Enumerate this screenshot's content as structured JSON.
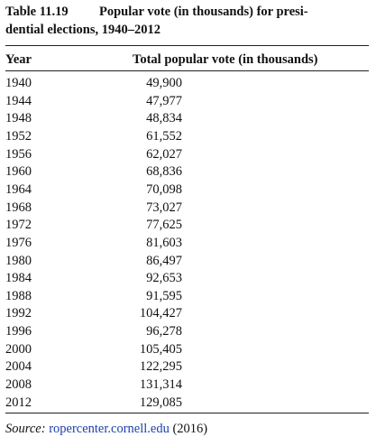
{
  "title": {
    "label": "Table 11.19",
    "lines": [
      "Popular vote (in thousands) for presi-",
      "dential elections, 1940–2012"
    ]
  },
  "table": {
    "columns": [
      "Year",
      "Total popular vote (in thousands)"
    ],
    "rows": [
      [
        "1940",
        "49,900"
      ],
      [
        "1944",
        "47,977"
      ],
      [
        "1948",
        "48,834"
      ],
      [
        "1952",
        "61,552"
      ],
      [
        "1956",
        "62,027"
      ],
      [
        "1960",
        "68,836"
      ],
      [
        "1964",
        "70,098"
      ],
      [
        "1968",
        "73,027"
      ],
      [
        "1972",
        "77,625"
      ],
      [
        "1976",
        "81,603"
      ],
      [
        "1980",
        "86,497"
      ],
      [
        "1984",
        "92,653"
      ],
      [
        "1988",
        "91,595"
      ],
      [
        "1992",
        "104,427"
      ],
      [
        "1996",
        "96,278"
      ],
      [
        "2000",
        "105,405"
      ],
      [
        "2004",
        "122,295"
      ],
      [
        "2008",
        "131,314"
      ],
      [
        "2012",
        "129,085"
      ]
    ]
  },
  "source": {
    "prefix": "Source:",
    "link": "ropercenter.cornell.edu",
    "suffix": "(2016)"
  }
}
